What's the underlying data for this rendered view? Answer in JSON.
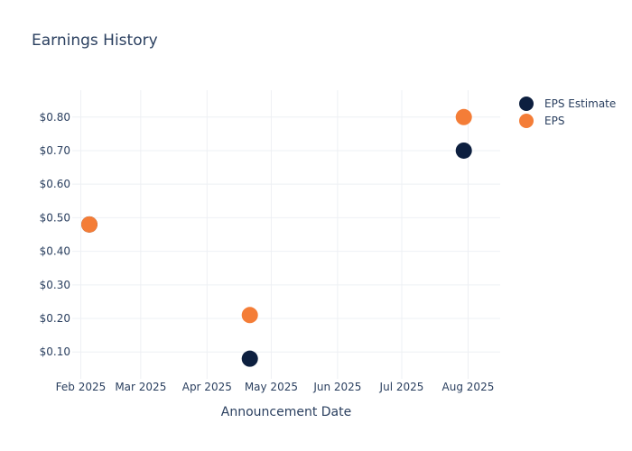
{
  "chart_data": {
    "type": "scatter",
    "title": "Earnings History",
    "xlabel": "Announcement Date",
    "ylabel": "",
    "x_ticks": [
      "Feb 2025",
      "Mar 2025",
      "Apr 2025",
      "May 2025",
      "Jun 2025",
      "Jul 2025",
      "Aug 2025"
    ],
    "y_ticks": [
      "$0.10",
      "$0.20",
      "$0.30",
      "$0.40",
      "$0.50",
      "$0.60",
      "$0.70",
      "$0.80"
    ],
    "xlim": [
      "2025-01-28",
      "2025-08-16"
    ],
    "ylim": [
      0.02,
      0.88
    ],
    "grid": true,
    "legend_position": "top-right",
    "series": [
      {
        "name": "EPS Estimate",
        "color": "#0d1f3f",
        "points": [
          {
            "x": "2025-02-05",
            "y": 0.48
          },
          {
            "x": "2025-04-21",
            "y": 0.08
          },
          {
            "x": "2025-07-30",
            "y": 0.7
          }
        ]
      },
      {
        "name": "EPS",
        "color": "#f47d37",
        "points": [
          {
            "x": "2025-02-05",
            "y": 0.48
          },
          {
            "x": "2025-04-21",
            "y": 0.21
          },
          {
            "x": "2025-07-30",
            "y": 0.8
          }
        ]
      }
    ]
  }
}
